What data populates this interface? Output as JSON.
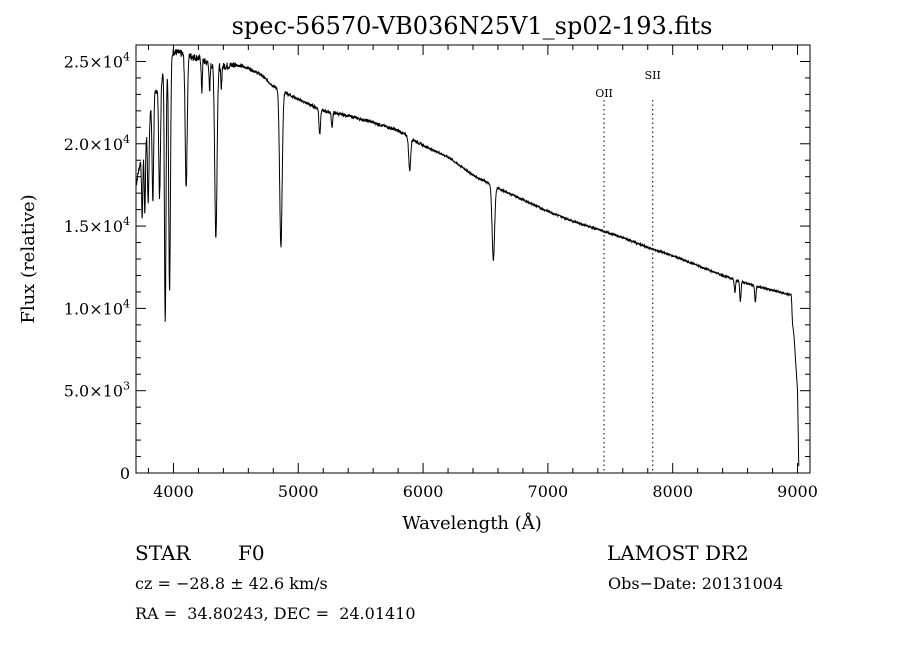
{
  "chart_data": {
    "type": "line",
    "title": "spec-56570-VB036N25V1_sp02-193.fits",
    "xlabel": "Wavelength (Å)",
    "ylabel": "Flux (relative)",
    "xlim": [
      3700,
      9100
    ],
    "ylim": [
      0,
      26000
    ],
    "x_ticks": [
      4000,
      5000,
      6000,
      7000,
      8000,
      9000
    ],
    "y_ticks": [
      {
        "value": 0,
        "mantissa": "0",
        "exp": ""
      },
      {
        "value": 5000,
        "mantissa": "5.0×10",
        "exp": "3"
      },
      {
        "value": 10000,
        "mantissa": "1.0×10",
        "exp": "4"
      },
      {
        "value": 15000,
        "mantissa": "1.5×10",
        "exp": "4"
      },
      {
        "value": 20000,
        "mantissa": "2.0×10",
        "exp": "4"
      },
      {
        "value": 25000,
        "mantissa": "2.5×10",
        "exp": "4"
      }
    ],
    "grid": false,
    "series": [
      {
        "continuum": [
          [
            3700,
            17500
          ],
          [
            3750,
            19500
          ],
          [
            3800,
            21500
          ],
          [
            3850,
            23000
          ],
          [
            3900,
            24000
          ],
          [
            3950,
            24800
          ],
          [
            4000,
            25600
          ],
          [
            4100,
            25400
          ],
          [
            4200,
            25200
          ],
          [
            4300,
            24800
          ],
          [
            4400,
            24700
          ],
          [
            4500,
            24800
          ],
          [
            4600,
            24600
          ],
          [
            4700,
            24200
          ],
          [
            4800,
            23500
          ],
          [
            5000,
            22700
          ],
          [
            5200,
            22000
          ],
          [
            5400,
            21700
          ],
          [
            5600,
            21300
          ],
          [
            5800,
            20800
          ],
          [
            6000,
            19900
          ],
          [
            6200,
            19200
          ],
          [
            6400,
            18100
          ],
          [
            6600,
            17300
          ],
          [
            6800,
            16600
          ],
          [
            7000,
            15900
          ],
          [
            7200,
            15300
          ],
          [
            7400,
            14800
          ],
          [
            7600,
            14300
          ],
          [
            7800,
            13700
          ],
          [
            8000,
            13200
          ],
          [
            8200,
            12600
          ],
          [
            8400,
            12000
          ],
          [
            8600,
            11500
          ],
          [
            8800,
            11100
          ],
          [
            8950,
            10800
          ],
          [
            9000,
            5000
          ],
          [
            9010,
            400
          ]
        ],
        "absorption_lines": [
          {
            "wavelength": 3750,
            "depth": 4000,
            "width": 5
          },
          {
            "wavelength": 3771,
            "depth": 4500,
            "width": 5
          },
          {
            "wavelength": 3798,
            "depth": 5000,
            "width": 6
          },
          {
            "wavelength": 3835,
            "depth": 6000,
            "width": 6
          },
          {
            "wavelength": 3889,
            "depth": 7000,
            "width": 7
          },
          {
            "wavelength": 3934,
            "depth": 15500,
            "width": 6
          },
          {
            "wavelength": 3969,
            "depth": 14000,
            "width": 7
          },
          {
            "wavelength": 4102,
            "depth": 8000,
            "width": 8
          },
          {
            "wavelength": 4227,
            "depth": 2000,
            "width": 4
          },
          {
            "wavelength": 4290,
            "depth": 1800,
            "width": 4
          },
          {
            "wavelength": 4340,
            "depth": 10500,
            "width": 9
          },
          {
            "wavelength": 4383,
            "depth": 1500,
            "width": 4
          },
          {
            "wavelength": 4861,
            "depth": 9500,
            "width": 10
          },
          {
            "wavelength": 5172,
            "depth": 1500,
            "width": 6
          },
          {
            "wavelength": 5270,
            "depth": 900,
            "width": 5
          },
          {
            "wavelength": 5893,
            "depth": 2000,
            "width": 8
          },
          {
            "wavelength": 6563,
            "depth": 4500,
            "width": 10
          },
          {
            "wavelength": 8498,
            "depth": 800,
            "width": 5
          },
          {
            "wavelength": 8542,
            "depth": 1200,
            "width": 5
          },
          {
            "wavelength": 8662,
            "depth": 1000,
            "width": 5
          },
          {
            "wavelength": 8960,
            "depth": 600,
            "width": 4
          }
        ]
      }
    ],
    "reference_lines": [
      {
        "label": "OII",
        "wavelength": 7450
      },
      {
        "label": "SII",
        "wavelength": 7840
      }
    ]
  },
  "info": {
    "object_class": "STAR",
    "subclass": "F0",
    "survey": "LAMOST DR2",
    "velocity": "cz = −28.8 ± 42.6 km/s",
    "obs_date": "Obs−Date: 20131004",
    "coordinates": "RA =  34.80243, DEC =  24.01410"
  }
}
